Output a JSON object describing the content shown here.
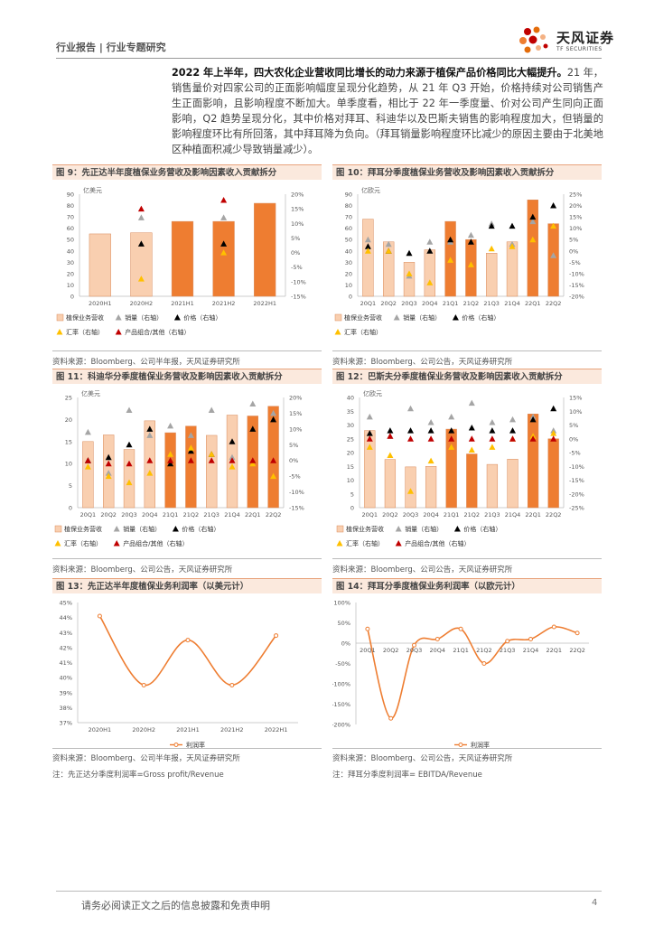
{
  "header": {
    "breadcrumb": "行业报告 | 行业专题研究",
    "logo_cn": "天风证券",
    "logo_en": "TF SECURITIES"
  },
  "paragraph": {
    "bold": "2022 年上半年，四大农化企业营收同比增长的动力来源于植保产品价格同比大幅提升。",
    "rest": "21 年，销售量价对四家公司的正面影响幅度呈现分化趋势，从 21 年 Q3 开始，价格持续对公司销售产生正面影响，且影响程度不断加大。单季度看，相比于 22 年一季度量、价对公司产生同向正面影响，Q2 趋势呈现分化，其中价格对拜耳、科迪华以及巴斯夫销售的影响程度加大，但销量的影响程度环比有所回落，其中拜耳降为负向。（拜耳销量影响程度环比减少的原因主要由于北美地区种植面积减少导致销量减少）。"
  },
  "figures": [
    {
      "id": "fig9",
      "title": "图 9：先正达半年度植保业务营收及影响因素收入贡献拆分",
      "unit": "亿美元",
      "source": "资料来源：Bloomberg、公司半年报，天风证券研究所",
      "legend": [
        "植保业务营收",
        "销量（右轴）",
        "价格（右轴）",
        "汇率（右轴）",
        "产品组合/其他（右轴）"
      ]
    },
    {
      "id": "fig10",
      "title": "图 10：拜耳分季度植保业务营收及影响因素收入贡献拆分",
      "unit": "亿欧元",
      "source": "资料来源：Bloomberg、公司公告，天风证券研究所",
      "legend": [
        "植保业务营收",
        "销量（右轴）",
        "价格（右轴）",
        "汇率（右轴）"
      ]
    },
    {
      "id": "fig11",
      "title": "图 11：科迪华分季度植保业务营收及影响因素收入贡献拆分",
      "unit": "亿美元",
      "source": "资料来源：Bloomberg、公司公告，天风证券研究所",
      "legend": [
        "植保业务营收",
        "销量（右轴）",
        "价格（右轴）",
        "汇率（右轴）",
        "产品组合/其他（右轴）"
      ]
    },
    {
      "id": "fig12",
      "title": "图 12：巴斯夫分季度植保业务营收及影响因素收入贡献拆分",
      "unit": "亿欧元",
      "source": "资料来源：Bloomberg、公司公告，天风证券研究所",
      "legend": [
        "植保业务营收",
        "销量（右轴）",
        "价格（右轴）",
        "汇率（右轴）",
        "产品组合/其他（右轴）"
      ]
    },
    {
      "id": "fig13",
      "title": "图 13：先正达半年度植保业务利润率（以美元计）",
      "source": "资料来源：Bloomberg、公司半年报，天风证券研究所",
      "legend": [
        "利润率"
      ],
      "note": "注：先正达分季度利润率=Gross profit/Revenue"
    },
    {
      "id": "fig14",
      "title": "图 14：拜耳分季度植保业务利润率（以欧元计）",
      "source": "资料来源：Bloomberg、公司公告，天风证券研究所",
      "legend": [
        "利润率"
      ],
      "note": "注：拜耳分季度利润率= EBITDA/Revenue"
    }
  ],
  "chart_data": [
    {
      "id": "fig9",
      "type": "bar",
      "categories": [
        "2020H1",
        "2020H2",
        "2021H1",
        "2021H2",
        "2022H1"
      ],
      "values": [
        55,
        56,
        66,
        66,
        82
      ],
      "ylim": [
        0,
        90
      ],
      "y2lim": [
        -15,
        20
      ],
      "y2ticks": [
        20,
        15,
        10,
        5,
        0,
        -5,
        -10,
        -15
      ],
      "yticks": [
        90,
        80,
        70,
        60,
        50,
        40,
        30,
        20,
        10,
        0
      ],
      "series": [
        {
          "name": "销量（右轴）",
          "values": [
            null,
            12,
            null,
            12,
            null
          ]
        },
        {
          "name": "价格（右轴）",
          "values": [
            null,
            3,
            null,
            3,
            null
          ]
        },
        {
          "name": "汇率（右轴）",
          "values": [
            null,
            -9,
            null,
            0,
            null
          ]
        },
        {
          "name": "产品组合/其他（右轴）",
          "values": [
            null,
            15,
            null,
            18,
            null
          ]
        }
      ]
    },
    {
      "id": "fig10",
      "type": "bar",
      "categories": [
        "20Q1",
        "20Q2",
        "20Q3",
        "20Q4",
        "21Q1",
        "21Q2",
        "21Q3",
        "21Q4",
        "22Q1",
        "22Q2"
      ],
      "values": [
        68,
        48,
        30,
        41,
        66,
        50,
        38,
        48,
        85,
        64
      ],
      "ylim": [
        0,
        90
      ],
      "y2lim": [
        -20,
        25
      ],
      "yticks": [
        90,
        80,
        70,
        60,
        50,
        40,
        30,
        20,
        10,
        0
      ],
      "y2ticks": [
        25,
        20,
        15,
        10,
        5,
        0,
        -5,
        -10,
        -15,
        -20
      ],
      "series": [
        {
          "name": "销量（右轴）",
          "values": [
            5,
            3,
            -11,
            4,
            4,
            7,
            12,
            3,
            13,
            -2
          ]
        },
        {
          "name": "价格（右轴）",
          "values": [
            2,
            0,
            -1,
            0,
            5,
            4,
            11,
            11,
            15,
            20
          ]
        },
        {
          "name": "汇率（右轴）",
          "values": [
            0,
            0,
            -10,
            -14,
            -4,
            -6,
            1,
            2,
            5,
            11
          ]
        }
      ]
    },
    {
      "id": "fig11",
      "type": "bar",
      "categories": [
        "20Q1",
        "20Q2",
        "20Q3",
        "20Q4",
        "21Q1",
        "21Q2",
        "21Q3",
        "21Q4",
        "22Q1",
        "22Q2"
      ],
      "values": [
        15,
        16.5,
        13.2,
        19.7,
        17,
        18.5,
        16.4,
        21,
        20.8,
        23
      ],
      "ylim": [
        0,
        25
      ],
      "y2lim": [
        -15,
        20
      ],
      "yticks": [
        25,
        20,
        15,
        10,
        5,
        0
      ],
      "y2ticks": [
        20,
        15,
        10,
        5,
        0,
        -5,
        -10,
        -15
      ],
      "series": [
        {
          "name": "销量（右轴）",
          "values": [
            9,
            -4,
            16,
            8,
            11,
            8,
            16,
            1,
            18,
            15
          ]
        },
        {
          "name": "价格（右轴）",
          "values": [
            0,
            1,
            5,
            10,
            -1,
            3,
            2,
            6,
            10,
            13
          ]
        },
        {
          "name": "汇率（右轴）",
          "values": [
            -2,
            -5,
            -7,
            -4,
            2,
            4,
            2,
            -2,
            -1,
            -5
          ]
        },
        {
          "name": "产品组合/其他（右轴）",
          "values": [
            0,
            -1,
            -1,
            0,
            0,
            0,
            0,
            0,
            0,
            0
          ]
        }
      ]
    },
    {
      "id": "fig12",
      "type": "bar",
      "categories": [
        "20Q1",
        "20Q2",
        "20Q3",
        "20Q4",
        "21Q1",
        "21Q2",
        "21Q3",
        "21Q4",
        "22Q1",
        "22Q2"
      ],
      "values": [
        28,
        17.5,
        14.8,
        15,
        28.5,
        19.5,
        15.7,
        17.6,
        34,
        25
      ],
      "ylim": [
        0,
        40
      ],
      "y2lim": [
        -25,
        15
      ],
      "yticks": [
        40,
        35,
        30,
        25,
        20,
        15,
        10,
        5,
        0
      ],
      "y2ticks": [
        15,
        10,
        5,
        0,
        -5,
        -10,
        -15,
        -20,
        -25
      ],
      "series": [
        {
          "name": "销量（右轴）",
          "values": [
            8,
            1,
            11,
            6,
            8,
            13,
            6,
            7,
            8,
            3
          ]
        },
        {
          "name": "价格（右轴）",
          "values": [
            2,
            3,
            3,
            3,
            3,
            4,
            3,
            3,
            7,
            11
          ]
        },
        {
          "name": "汇率（右轴）",
          "values": [
            -3,
            -6,
            -19,
            -8,
            -3,
            -4,
            -3,
            0,
            1,
            2
          ]
        },
        {
          "name": "产品组合/其他（右轴）",
          "values": [
            0,
            1,
            0,
            0,
            0,
            0,
            0,
            0,
            0,
            0
          ]
        }
      ]
    },
    {
      "id": "fig13",
      "type": "line",
      "categories": [
        "2020H1",
        "2020H2",
        "2021H1",
        "2021H2",
        "2022H1"
      ],
      "series": [
        {
          "name": "利润率",
          "values": [
            44.1,
            39.5,
            42.5,
            39.5,
            42.8
          ]
        }
      ],
      "ylim": [
        37,
        45
      ],
      "yticks": [
        "45%",
        "44%",
        "43%",
        "42%",
        "41%",
        "40%",
        "39%",
        "38%",
        "37%"
      ]
    },
    {
      "id": "fig14",
      "type": "line",
      "categories": [
        "20Q1",
        "20Q2",
        "20Q3",
        "20Q4",
        "21Q1",
        "21Q2",
        "21Q3",
        "21Q4",
        "22Q1",
        "22Q2"
      ],
      "series": [
        {
          "name": "利润率",
          "values": [
            35,
            -185,
            -5,
            10,
            35,
            -50,
            5,
            10,
            40,
            25
          ]
        }
      ],
      "ylim": [
        -200,
        100
      ],
      "yticks": [
        "100%",
        "50%",
        "0%",
        "-50%",
        "-100%",
        "-150%",
        "-200%"
      ]
    }
  ],
  "footer": {
    "disclaimer": "请务必阅读正文之后的信息披露和免责申明",
    "page": "4"
  },
  "colors": {
    "bar_light": "#f9cfb0",
    "bar_dark": "#ee7d31",
    "volume": "#a5a5a5",
    "price": "#000000",
    "fx": "#ffc000",
    "mix": "#c00000",
    "line": "#ee7d31"
  }
}
